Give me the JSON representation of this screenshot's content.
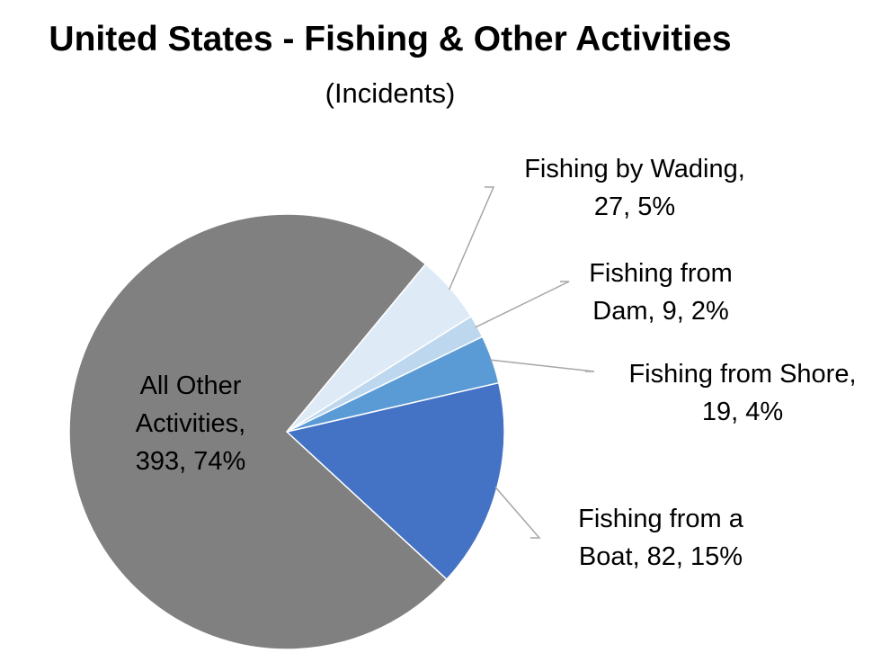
{
  "chart_data": {
    "type": "pie",
    "title": "United States - Fishing & Other Activities",
    "subtitle": "(Incidents)",
    "slices": [
      {
        "name": "Fishing from a Boat",
        "value": 82,
        "percent": "15%",
        "color": "#4472c4",
        "label_lines": [
          "Fishing from a",
          "Boat, 82, 15%"
        ]
      },
      {
        "name": "All Other Activities",
        "value": 393,
        "percent": "74%",
        "color": "#808080",
        "label_lines": [
          "All Other",
          "Activities,",
          "393, 74%"
        ]
      },
      {
        "name": "Fishing by Wading",
        "value": 27,
        "percent": "5%",
        "color": "#deebf7",
        "label_lines": [
          "Fishing by Wading,",
          "27, 5%"
        ]
      },
      {
        "name": "Fishing from Dam",
        "value": 9,
        "percent": "2%",
        "color": "#bdd7ee",
        "label_lines": [
          "Fishing from",
          "Dam, 9, 2%"
        ]
      },
      {
        "name": "Fishing from Shore",
        "value": 19,
        "percent": "4%",
        "color": "#5b9bd5",
        "label_lines": [
          "Fishing from Shore,",
          "19, 4%"
        ]
      }
    ],
    "legend": "none"
  }
}
